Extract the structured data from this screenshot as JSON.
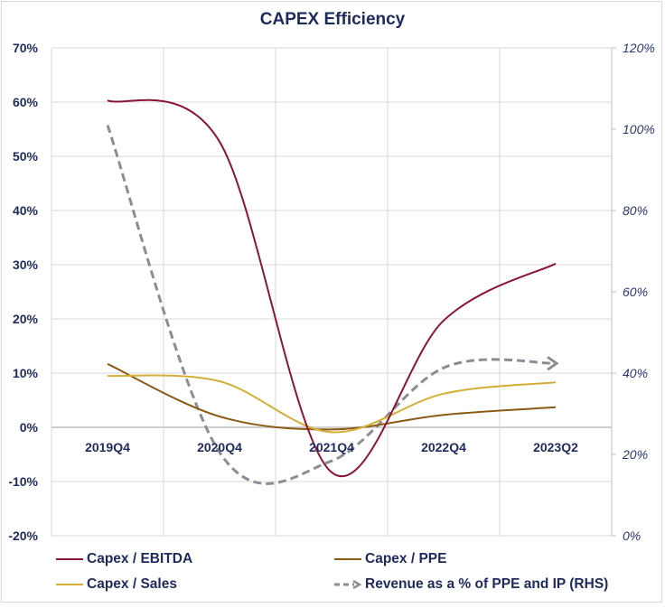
{
  "chart_data": {
    "type": "line",
    "title": "CAPEX Efficiency",
    "xlabel": "",
    "ylabel": "",
    "ylabel_right": "",
    "categories": [
      "2019Q4",
      "2020Q4",
      "2021Q4",
      "2022Q4",
      "2023Q2"
    ],
    "y_left": {
      "min": -20,
      "max": 70,
      "step": 10,
      "ticks": [
        "-20%",
        "-10%",
        "0%",
        "10%",
        "20%",
        "30%",
        "40%",
        "50%",
        "60%",
        "70%"
      ]
    },
    "y_right": {
      "min": 0,
      "max": 120,
      "step": 20,
      "ticks": [
        "0%",
        "20%",
        "40%",
        "60%",
        "80%",
        "100%",
        "120%"
      ]
    },
    "grid": true,
    "smoothed": true,
    "legend_position": "bottom",
    "series": [
      {
        "name": "Capex / EBITDA",
        "axis": "left",
        "color": "#8b1538",
        "style": "solid",
        "values": [
          60.3,
          52.7,
          -8.3,
          19.7,
          30.2
        ]
      },
      {
        "name": "Capex / PPE",
        "axis": "left",
        "color": "#8b5a14",
        "style": "solid",
        "values": [
          11.7,
          2.0,
          -0.4,
          2.3,
          3.7
        ]
      },
      {
        "name": "Capex / Sales",
        "axis": "left",
        "color": "#d4af37",
        "style": "solid",
        "values": [
          9.5,
          8.5,
          -0.9,
          6.2,
          8.3
        ]
      },
      {
        "name": "Revenue as a % of PPE and IP (RHS)",
        "axis": "right",
        "color": "#8a8d93",
        "style": "dashed-arrow",
        "values": [
          101,
          20.5,
          18.4,
          41.3,
          42.4
        ]
      }
    ]
  },
  "legend": [
    {
      "label": "Capex / EBITDA"
    },
    {
      "label": "Capex / PPE"
    },
    {
      "label": "Capex / Sales"
    },
    {
      "label": "Revenue as a % of PPE and IP (RHS)"
    }
  ]
}
